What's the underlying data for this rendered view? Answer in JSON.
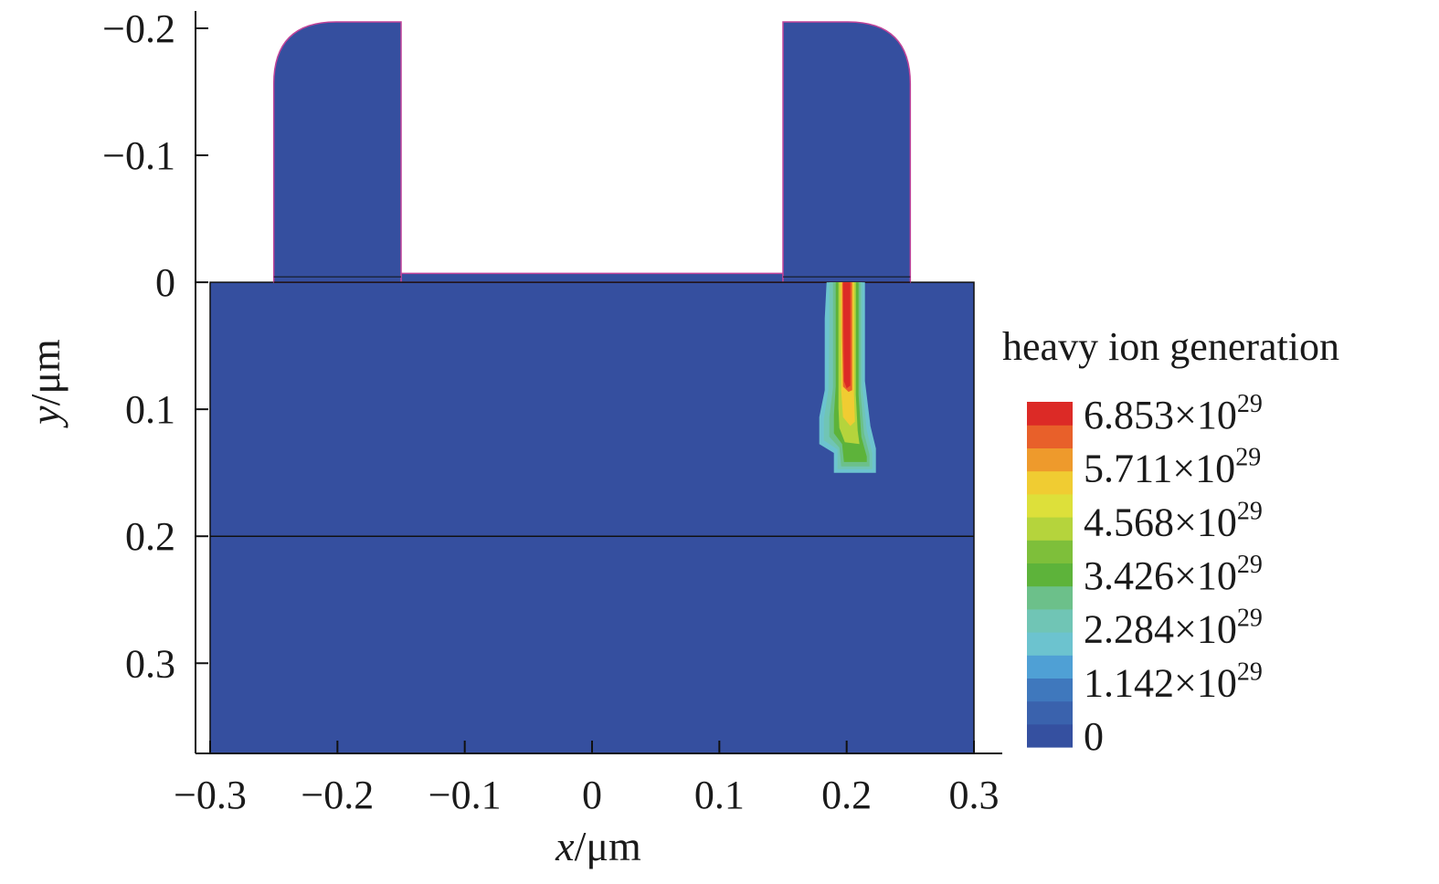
{
  "chart_data": {
    "type": "heatmap",
    "title": "",
    "xlabel": {
      "var": "x",
      "unit": "/μm"
    },
    "ylabel": {
      "var": "y",
      "unit": "/μm"
    },
    "xlim": [
      -0.3,
      0.3
    ],
    "ylim": [
      -0.2,
      0.35
    ],
    "y_axis_inverted": true,
    "grid": false,
    "x_ticks": [
      {
        "value": -0.3,
        "label": "−0.3"
      },
      {
        "value": -0.2,
        "label": "−0.2"
      },
      {
        "value": -0.1,
        "label": "−0.1"
      },
      {
        "value": 0,
        "label": "0"
      },
      {
        "value": 0.1,
        "label": "0.1"
      },
      {
        "value": 0.2,
        "label": "0.2"
      },
      {
        "value": 0.3,
        "label": "0.3"
      }
    ],
    "y_ticks": [
      {
        "value": -0.2,
        "label": "−0.2"
      },
      {
        "value": -0.1,
        "label": "−0.1"
      },
      {
        "value": 0,
        "label": "0"
      },
      {
        "value": 0.1,
        "label": "0.1"
      },
      {
        "value": 0.2,
        "label": "0.2"
      },
      {
        "value": 0.3,
        "label": "0.3"
      }
    ],
    "structure": {
      "substrate": {
        "x": [
          -0.3,
          0.3
        ],
        "y": [
          0,
          0.37
        ]
      },
      "interface_line_y": 0.2,
      "left_gate": {
        "x": [
          -0.25,
          -0.15
        ],
        "y": [
          -0.205,
          0
        ]
      },
      "right_gate": {
        "x": [
          0.15,
          0.25
        ],
        "y": [
          -0.205,
          0
        ]
      },
      "center_oxide": {
        "x": [
          -0.15,
          0.15
        ],
        "y": [
          -0.007,
          0
        ]
      }
    },
    "ion_track": {
      "x_center": 0.2,
      "y_range": [
        0,
        0.15
      ],
      "peak_value": 6.853e+29
    },
    "colorbar": {
      "title": "heavy ion generation",
      "placement": "right",
      "min": 0,
      "max": 6.853e+29,
      "colors": [
        "#3550a0",
        "#3a62ad",
        "#3f78bd",
        "#4fa0d5",
        "#6cc3cf",
        "#70c5b5",
        "#6cc08a",
        "#5db33a",
        "#7ebf3a",
        "#b5d43c",
        "#dde03a",
        "#f0cc32",
        "#ee9a2c",
        "#e8602a",
        "#dc2a26"
      ],
      "labels": [
        {
          "value": 6.853e+29,
          "mantissa": "6.853×10",
          "exp": "29"
        },
        {
          "value": 5.711e+29,
          "mantissa": "5.711×10",
          "exp": "29"
        },
        {
          "value": 4.568e+29,
          "mantissa": "4.568×10",
          "exp": "29"
        },
        {
          "value": 3.426e+29,
          "mantissa": "3.426×10",
          "exp": "29"
        },
        {
          "value": 2.284e+29,
          "mantissa": "2.284×10",
          "exp": "29"
        },
        {
          "value": 1.142e+29,
          "mantissa": "1.142×10",
          "exp": "29"
        },
        {
          "value": 0,
          "mantissa": "0",
          "exp": ""
        }
      ]
    },
    "colors": {
      "device_fill": "#354f9f",
      "edge": "#111111",
      "gate_edge": "#c0449a"
    }
  }
}
